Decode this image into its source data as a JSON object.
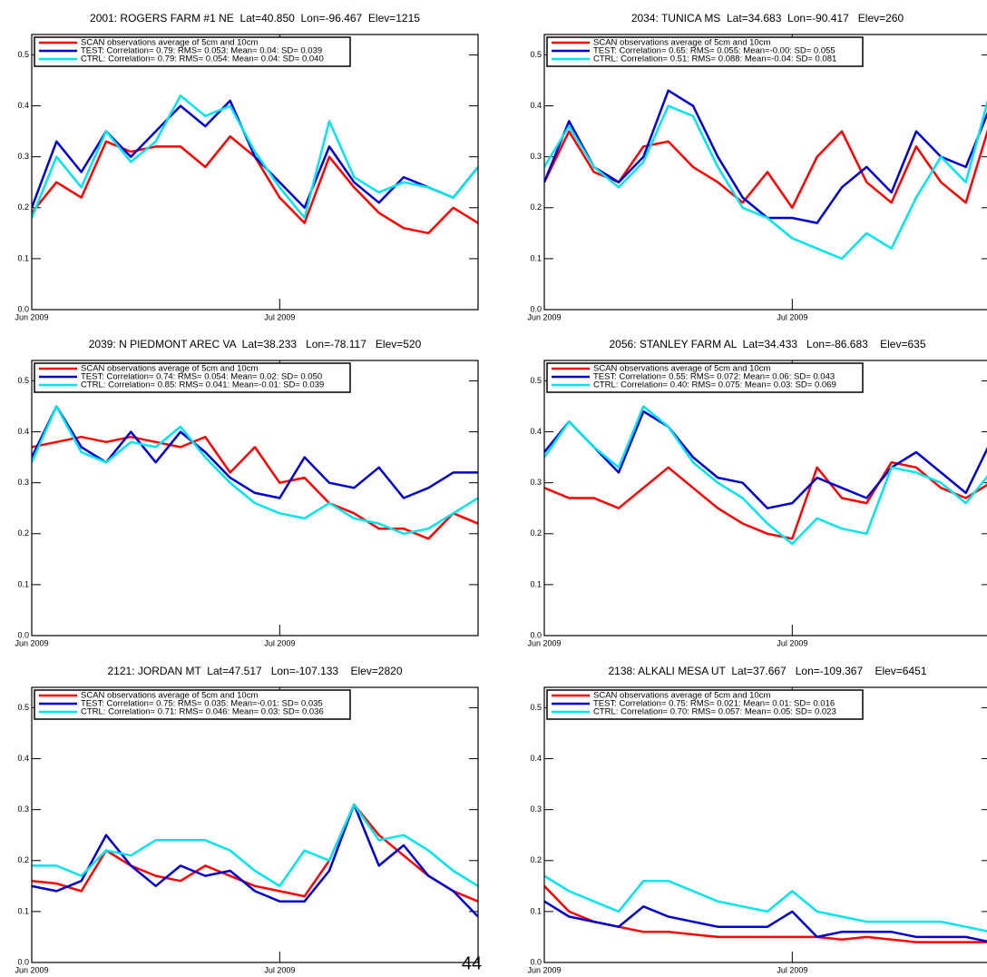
{
  "chart_data": [
    {
      "type": "line",
      "title": "2001: ROGERS FARM #1 NE  Lat=40.850  Lon=-96.467  Elev=1215",
      "x": [
        0,
        3,
        6,
        9,
        12,
        15,
        18,
        21,
        24,
        27,
        30,
        33,
        36,
        39,
        42,
        45,
        48,
        51,
        54
      ],
      "xlim": [
        0,
        54
      ],
      "xticks": [
        {
          "value": 0,
          "label": "Jun 2009"
        },
        {
          "value": 30,
          "label": "Jul 2009"
        }
      ],
      "ylim": [
        0,
        0.54
      ],
      "yticks": [
        {
          "value": 0,
          "label": "0.0"
        },
        0.1,
        0.2,
        0.3,
        0.4,
        0.5
      ],
      "series": [
        {
          "name": "SCAN observations average of 5cm and 10cm",
          "color": "#ff0000",
          "values": [
            0.19,
            0.25,
            0.22,
            0.33,
            0.31,
            0.32,
            0.32,
            0.28,
            0.34,
            0.3,
            0.22,
            0.17,
            0.3,
            0.24,
            0.19,
            0.16,
            0.15,
            0.2,
            0.17
          ]
        },
        {
          "name": "TEST: Correlation= 0.79: RMS= 0.053: Mean= 0.04: SD= 0.039",
          "color": "#0000d0",
          "values": [
            0.2,
            0.33,
            0.27,
            0.35,
            0.3,
            0.35,
            0.4,
            0.36,
            0.41,
            0.3,
            0.25,
            0.2,
            0.32,
            0.25,
            0.21,
            0.26,
            0.24,
            0.22,
            0.28
          ]
        },
        {
          "name": "CTRL: Correlation= 0.79: RMS= 0.054: Mean= 0.04: SD= 0.040",
          "color": "#00e5ee",
          "values": [
            0.18,
            0.3,
            0.24,
            0.35,
            0.29,
            0.33,
            0.42,
            0.38,
            0.4,
            0.31,
            0.24,
            0.18,
            0.37,
            0.26,
            0.23,
            0.25,
            0.24,
            0.22,
            0.28
          ]
        }
      ]
    },
    {
      "type": "line",
      "title": "2034: TUNICA MS  Lat=34.683  Lon=-90.417   Elev=260",
      "x": [
        0,
        3,
        6,
        9,
        12,
        15,
        18,
        21,
        24,
        27,
        30,
        33,
        36,
        39,
        42,
        45,
        48,
        51,
        54
      ],
      "xlim": [
        0,
        54
      ],
      "xticks": [
        {
          "value": 0,
          "label": "Jun 2009"
        },
        {
          "value": 30,
          "label": "Jul 2009"
        }
      ],
      "ylim": [
        0,
        0.54
      ],
      "yticks": [
        {
          "value": 0,
          "label": "0.0"
        },
        0.1,
        0.2,
        0.3,
        0.4,
        0.5
      ],
      "series": [
        {
          "name": "SCAN observations average of 5cm and 10cm",
          "color": "#ff0000",
          "values": [
            0.25,
            0.35,
            0.27,
            0.25,
            0.32,
            0.33,
            0.28,
            0.25,
            0.21,
            0.27,
            0.2,
            0.3,
            0.35,
            0.25,
            0.21,
            0.32,
            0.25,
            0.21,
            0.37
          ]
        },
        {
          "name": "TEST: Correlation= 0.65: RMS= 0.055: Mean=-0.00: SD= 0.055",
          "color": "#0000d0",
          "values": [
            0.25,
            0.37,
            0.28,
            0.25,
            0.3,
            0.43,
            0.4,
            0.3,
            0.22,
            0.18,
            0.18,
            0.17,
            0.24,
            0.28,
            0.23,
            0.35,
            0.3,
            0.28,
            0.4
          ]
        },
        {
          "name": "CTRL: Correlation= 0.51: RMS= 0.088: Mean=-0.04: SD= 0.081",
          "color": "#00e5ee",
          "values": [
            0.28,
            0.36,
            0.28,
            0.24,
            0.29,
            0.4,
            0.38,
            0.28,
            0.2,
            0.18,
            0.14,
            0.12,
            0.1,
            0.15,
            0.12,
            0.22,
            0.3,
            0.25,
            0.43
          ]
        }
      ]
    },
    {
      "type": "line",
      "title": "2039: N PIEDMONT AREC VA  Lat=38.233   Lon=-78.117   Elev=520",
      "x": [
        0,
        3,
        6,
        9,
        12,
        15,
        18,
        21,
        24,
        27,
        30,
        33,
        36,
        39,
        42,
        45,
        48,
        51,
        54
      ],
      "xlim": [
        0,
        54
      ],
      "xticks": [
        {
          "value": 0,
          "label": "Jun 2009"
        },
        {
          "value": 30,
          "label": "Jul 2009"
        }
      ],
      "ylim": [
        0,
        0.54
      ],
      "yticks": [
        {
          "value": 0,
          "label": "0.0"
        },
        0.1,
        0.2,
        0.3,
        0.4,
        0.5
      ],
      "series": [
        {
          "name": "SCAN observations average of 5cm and 10cm",
          "color": "#ff0000",
          "values": [
            0.37,
            0.38,
            0.39,
            0.38,
            0.39,
            0.38,
            0.37,
            0.39,
            0.32,
            0.37,
            0.3,
            0.31,
            0.26,
            0.24,
            0.21,
            0.21,
            0.19,
            0.24,
            0.22
          ]
        },
        {
          "name": "TEST: Correlation= 0.74: RMS= 0.054: Mean= 0.02: SD= 0.050",
          "color": "#0000d0",
          "values": [
            0.35,
            0.45,
            0.37,
            0.34,
            0.4,
            0.34,
            0.4,
            0.36,
            0.31,
            0.28,
            0.27,
            0.35,
            0.3,
            0.29,
            0.33,
            0.27,
            0.29,
            0.32,
            0.32
          ]
        },
        {
          "name": "CTRL: Correlation= 0.85: RMS= 0.041: Mean=-0.01: SD= 0.039",
          "color": "#00e5ee",
          "values": [
            0.34,
            0.45,
            0.36,
            0.34,
            0.38,
            0.37,
            0.41,
            0.35,
            0.3,
            0.26,
            0.24,
            0.23,
            0.26,
            0.23,
            0.22,
            0.2,
            0.21,
            0.24,
            0.27
          ]
        }
      ]
    },
    {
      "type": "line",
      "title": "2056: STANLEY FARM AL  Lat=34.433   Lon=-86.683    Elev=635",
      "x": [
        0,
        3,
        6,
        9,
        12,
        15,
        18,
        21,
        24,
        27,
        30,
        33,
        36,
        39,
        42,
        45,
        48,
        51,
        54
      ],
      "xlim": [
        0,
        54
      ],
      "xticks": [
        {
          "value": 0,
          "label": "Jun 2009"
        },
        {
          "value": 30,
          "label": "Jul 2009"
        }
      ],
      "ylim": [
        0,
        0.54
      ],
      "yticks": [
        {
          "value": 0,
          "label": "0.0"
        },
        0.1,
        0.2,
        0.3,
        0.4,
        0.5
      ],
      "series": [
        {
          "name": "SCAN observations average of 5cm and 10cm",
          "color": "#ff0000",
          "values": [
            0.29,
            0.27,
            0.27,
            0.25,
            0.29,
            0.33,
            0.29,
            0.25,
            0.22,
            0.2,
            0.19,
            0.33,
            0.27,
            0.26,
            0.34,
            0.33,
            0.29,
            0.27,
            0.3
          ]
        },
        {
          "name": "TEST: Correlation= 0.55: RMS= 0.072: Mean= 0.06: SD= 0.043",
          "color": "#0000d0",
          "values": [
            0.36,
            0.42,
            0.37,
            0.32,
            0.44,
            0.41,
            0.35,
            0.31,
            0.3,
            0.25,
            0.26,
            0.31,
            0.29,
            0.27,
            0.33,
            0.36,
            0.32,
            0.28,
            0.38
          ]
        },
        {
          "name": "CTRL: Correlation= 0.40: RMS= 0.075: Mean= 0.03: SD= 0.069",
          "color": "#00e5ee",
          "values": [
            0.35,
            0.42,
            0.37,
            0.33,
            0.45,
            0.41,
            0.34,
            0.3,
            0.27,
            0.22,
            0.18,
            0.23,
            0.21,
            0.2,
            0.33,
            0.32,
            0.3,
            0.26,
            0.32
          ]
        }
      ]
    },
    {
      "type": "line",
      "title": "2121: JORDAN MT  Lat=47.517   Lon=-107.133    Elev=2820",
      "x": [
        0,
        3,
        6,
        9,
        12,
        15,
        18,
        21,
        24,
        27,
        30,
        33,
        36,
        39,
        42,
        45,
        48,
        51,
        54
      ],
      "xlim": [
        0,
        54
      ],
      "xticks": [
        {
          "value": 0,
          "label": "Jun 2009"
        },
        {
          "value": 30,
          "label": "Jul 2009"
        }
      ],
      "ylim": [
        0,
        0.54
      ],
      "yticks": [
        {
          "value": 0,
          "label": "0.0"
        },
        0.1,
        0.2,
        0.3,
        0.4,
        0.5
      ],
      "series": [
        {
          "name": "SCAN observations average of 5cm and 10cm",
          "color": "#ff0000",
          "values": [
            0.16,
            0.155,
            0.14,
            0.22,
            0.19,
            0.17,
            0.16,
            0.19,
            0.17,
            0.15,
            0.14,
            0.13,
            0.2,
            0.31,
            0.25,
            0.21,
            0.17,
            0.14,
            0.12
          ]
        },
        {
          "name": "TEST: Correlation= 0.75: RMS= 0.035: Mean=-0.01: SD= 0.035",
          "color": "#0000d0",
          "values": [
            0.15,
            0.14,
            0.16,
            0.25,
            0.19,
            0.15,
            0.19,
            0.17,
            0.18,
            0.14,
            0.12,
            0.12,
            0.18,
            0.31,
            0.19,
            0.23,
            0.17,
            0.14,
            0.09
          ]
        },
        {
          "name": "CTRL: Correlation= 0.71: RMS= 0.046: Mean= 0.03: SD= 0.036",
          "color": "#00e5ee",
          "values": [
            0.19,
            0.19,
            0.17,
            0.22,
            0.21,
            0.24,
            0.24,
            0.24,
            0.22,
            0.18,
            0.15,
            0.22,
            0.2,
            0.31,
            0.24,
            0.25,
            0.22,
            0.18,
            0.15
          ]
        }
      ]
    },
    {
      "type": "line",
      "title": "2138: ALKALI MESA UT  Lat=37.667   Lon=-109.367    Elev=6451",
      "x": [
        0,
        3,
        6,
        9,
        12,
        15,
        18,
        21,
        24,
        27,
        30,
        33,
        36,
        39,
        42,
        45,
        48,
        51,
        54
      ],
      "xlim": [
        0,
        54
      ],
      "xticks": [
        {
          "value": 0,
          "label": "Jun 2009"
        },
        {
          "value": 30,
          "label": "Jul 2009"
        }
      ],
      "ylim": [
        0,
        0.54
      ],
      "yticks": [
        {
          "value": 0,
          "label": "0.0"
        },
        0.1,
        0.2,
        0.3,
        0.4,
        0.5
      ],
      "series": [
        {
          "name": "SCAN observations average of 5cm and 10cm",
          "color": "#ff0000",
          "values": [
            0.15,
            0.1,
            0.08,
            0.07,
            0.06,
            0.06,
            0.055,
            0.05,
            0.05,
            0.05,
            0.05,
            0.05,
            0.045,
            0.05,
            0.045,
            0.04,
            0.04,
            0.04,
            0.04
          ]
        },
        {
          "name": "TEST: Correlation= 0.75: RMS= 0.021: Mean= 0.01: SD= 0.016",
          "color": "#0000d0",
          "values": [
            0.12,
            0.09,
            0.08,
            0.07,
            0.11,
            0.09,
            0.08,
            0.07,
            0.07,
            0.07,
            0.1,
            0.05,
            0.06,
            0.06,
            0.06,
            0.05,
            0.05,
            0.05,
            0.04
          ]
        },
        {
          "name": "CTRL: Correlation= 0.70: RMS= 0.057: Mean= 0.05: SD= 0.023",
          "color": "#00e5ee",
          "values": [
            0.17,
            0.14,
            0.12,
            0.1,
            0.16,
            0.16,
            0.14,
            0.12,
            0.11,
            0.1,
            0.14,
            0.1,
            0.09,
            0.08,
            0.08,
            0.08,
            0.08,
            0.07,
            0.06
          ]
        }
      ]
    }
  ],
  "page_number": "44"
}
